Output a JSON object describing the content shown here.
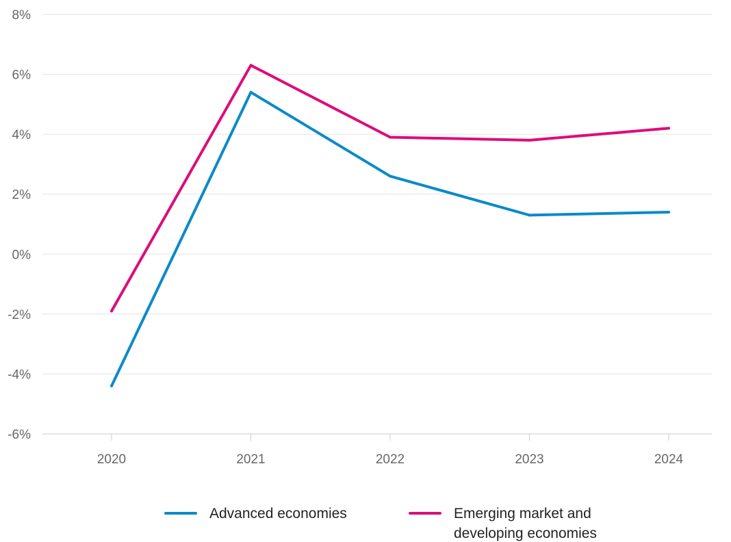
{
  "chart_data": {
    "type": "line",
    "title": "",
    "xlabel": "",
    "ylabel": "",
    "x": [
      "2020",
      "2021",
      "2022",
      "2023",
      "2024"
    ],
    "ylim": [
      -6,
      8
    ],
    "y_ticks": [
      8,
      6,
      4,
      2,
      0,
      -2,
      -4,
      -6
    ],
    "y_tick_labels": [
      "8%",
      "6%",
      "4%",
      "2%",
      "0%",
      "-2%",
      "-4%",
      "-6%"
    ],
    "grid": true,
    "legend_position": "bottom",
    "series": [
      {
        "name": "Advanced economies",
        "color": "#0b8ac9",
        "values": [
          -4.4,
          5.4,
          2.6,
          1.3,
          1.4
        ]
      },
      {
        "name": "Emerging market and developing economies",
        "name_lines": [
          "Emerging market and",
          "developing economies"
        ],
        "color": "#dc0d7a",
        "values": [
          -1.9,
          6.3,
          3.9,
          3.8,
          4.2
        ]
      }
    ]
  }
}
